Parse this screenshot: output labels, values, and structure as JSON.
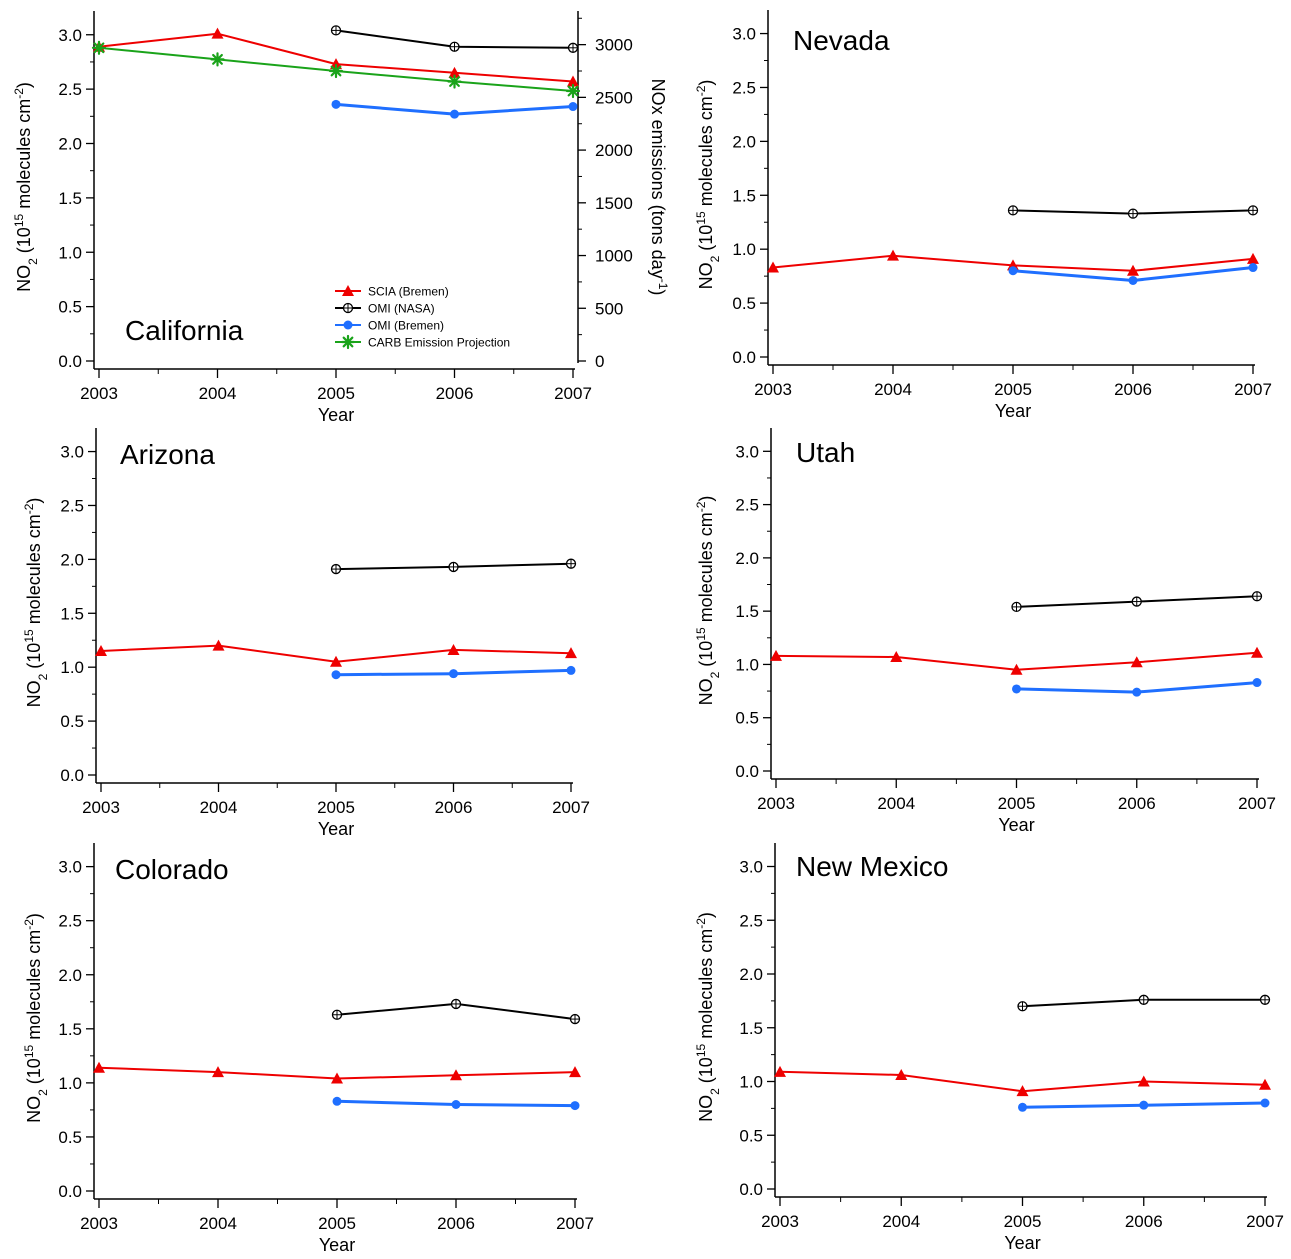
{
  "colors": {
    "scia": "#ee0000",
    "omi_nasa": "#000000",
    "omi_bremen": "#1f6fff",
    "carb": "#1aa31a"
  },
  "legend": {
    "entries": [
      {
        "key": "scia",
        "label": "SCIA (Bremen)",
        "marker": "triangle"
      },
      {
        "key": "omi_nasa",
        "label": "OMI (NASA)",
        "marker": "circle-plus"
      },
      {
        "key": "omi_bremen",
        "label": "OMI (Bremen)",
        "marker": "dot"
      },
      {
        "key": "carb",
        "label": "CARB Emission Projection",
        "marker": "asterisk"
      }
    ]
  },
  "chart_data": [
    {
      "type": "line",
      "title": "California",
      "xlabel": "Year",
      "ylabel_main": "NO",
      "ylabel_sub": "2",
      "ylabel_rest": " (10",
      "ylabel_exp": "15",
      "ylabel_units": " molecules cm",
      "ylabel_units_exp": "-2",
      "ylabel_close": ")",
      "x": [
        2003,
        2004,
        2005,
        2006,
        2007
      ],
      "xticks": [
        "2003",
        "2004",
        "2005",
        "2006",
        "2007"
      ],
      "ylim": [
        0,
        3.2
      ],
      "yticks": [
        "0.0",
        "0.5",
        "1.0",
        "1.5",
        "2.0",
        "2.5",
        "3.0"
      ],
      "y2label": "NOx emissions (tons day",
      "y2label_exp": "-1",
      "y2label_close": ")",
      "y2lim": [
        0,
        3300
      ],
      "y2ticks": [
        "0",
        "500",
        "1000",
        "1500",
        "2000",
        "2500",
        "3000"
      ],
      "show_legend": true,
      "series": [
        {
          "key": "scia",
          "name": "SCIA (Bremen)",
          "x": [
            2003,
            2004,
            2005,
            2006,
            2007
          ],
          "values": [
            2.89,
            3.01,
            2.73,
            2.65,
            2.57
          ]
        },
        {
          "key": "omi_nasa",
          "name": "OMI (NASA)",
          "x": [
            2005,
            2006,
            2007
          ],
          "values": [
            3.04,
            2.89,
            2.88
          ]
        },
        {
          "key": "omi_bremen",
          "name": "OMI (Bremen)",
          "x": [
            2005,
            2006,
            2007
          ],
          "values": [
            2.36,
            2.27,
            2.34
          ]
        },
        {
          "key": "carb",
          "name": "CARB Emission Projection",
          "axis": "right",
          "x": [
            2003,
            2004,
            2005,
            2006,
            2007
          ],
          "values": [
            2970,
            2860,
            2750,
            2650,
            2560
          ]
        }
      ]
    },
    {
      "type": "line",
      "title": "Nevada",
      "xlabel": "Year",
      "ylabel_main": "NO",
      "ylabel_sub": "2",
      "ylabel_rest": " (10",
      "ylabel_exp": "15",
      "ylabel_units": " molecules cm",
      "ylabel_units_exp": "-2",
      "ylabel_close": ")",
      "x": [
        2003,
        2004,
        2005,
        2006,
        2007
      ],
      "xticks": [
        "2003",
        "2004",
        "2005",
        "2006",
        "2007"
      ],
      "ylim": [
        0,
        3.2
      ],
      "yticks": [
        "0.0",
        "0.5",
        "1.0",
        "1.5",
        "2.0",
        "2.5",
        "3.0"
      ],
      "series": [
        {
          "key": "scia",
          "name": "SCIA (Bremen)",
          "x": [
            2003,
            2004,
            2005,
            2006,
            2007
          ],
          "values": [
            0.83,
            0.94,
            0.85,
            0.8,
            0.91
          ]
        },
        {
          "key": "omi_nasa",
          "name": "OMI (NASA)",
          "x": [
            2005,
            2006,
            2007
          ],
          "values": [
            1.36,
            1.33,
            1.36
          ]
        },
        {
          "key": "omi_bremen",
          "name": "OMI (Bremen)",
          "x": [
            2005,
            2006,
            2007
          ],
          "values": [
            0.8,
            0.71,
            0.83
          ]
        }
      ]
    },
    {
      "type": "line",
      "title": "Arizona",
      "xlabel": "Year",
      "ylabel_main": "NO",
      "ylabel_sub": "2",
      "ylabel_rest": " (10",
      "ylabel_exp": "15",
      "ylabel_units": " molecules cm",
      "ylabel_units_exp": "-2",
      "ylabel_close": ")",
      "x": [
        2003,
        2004,
        2005,
        2006,
        2007
      ],
      "xticks": [
        "2003",
        "2004",
        "2005",
        "2006",
        "2007"
      ],
      "ylim": [
        0,
        3.2
      ],
      "yticks": [
        "0.0",
        "0.5",
        "1.0",
        "1.5",
        "2.0",
        "2.5",
        "3.0"
      ],
      "series": [
        {
          "key": "scia",
          "name": "SCIA (Bremen)",
          "x": [
            2003,
            2004,
            2005,
            2006,
            2007
          ],
          "values": [
            1.15,
            1.2,
            1.05,
            1.16,
            1.13
          ]
        },
        {
          "key": "omi_nasa",
          "name": "OMI (NASA)",
          "x": [
            2005,
            2006,
            2007
          ],
          "values": [
            1.91,
            1.93,
            1.96
          ]
        },
        {
          "key": "omi_bremen",
          "name": "OMI (Bremen)",
          "x": [
            2005,
            2006,
            2007
          ],
          "values": [
            0.93,
            0.94,
            0.97
          ]
        }
      ]
    },
    {
      "type": "line",
      "title": "Utah",
      "xlabel": "Year",
      "ylabel_main": "NO",
      "ylabel_sub": "2",
      "ylabel_rest": " (10",
      "ylabel_exp": "15",
      "ylabel_units": " molecules cm",
      "ylabel_units_exp": "-2",
      "ylabel_close": ")",
      "x": [
        2003,
        2004,
        2005,
        2006,
        2007
      ],
      "xticks": [
        "2003",
        "2004",
        "2005",
        "2006",
        "2007"
      ],
      "ylim": [
        0,
        3.2
      ],
      "yticks": [
        "0.0",
        "0.5",
        "1.0",
        "1.5",
        "2.0",
        "2.5",
        "3.0"
      ],
      "series": [
        {
          "key": "scia",
          "name": "SCIA (Bremen)",
          "x": [
            2003,
            2004,
            2005,
            2006,
            2007
          ],
          "values": [
            1.08,
            1.07,
            0.95,
            1.02,
            1.11
          ]
        },
        {
          "key": "omi_nasa",
          "name": "OMI (NASA)",
          "x": [
            2005,
            2006,
            2007
          ],
          "values": [
            1.54,
            1.59,
            1.64
          ]
        },
        {
          "key": "omi_bremen",
          "name": "OMI (Bremen)",
          "x": [
            2005,
            2006,
            2007
          ],
          "values": [
            0.77,
            0.74,
            0.83
          ]
        }
      ]
    },
    {
      "type": "line",
      "title": "Colorado",
      "xlabel": "Year",
      "ylabel_main": "NO",
      "ylabel_sub": "2",
      "ylabel_rest": " (10",
      "ylabel_exp": "15",
      "ylabel_units": " molecules cm",
      "ylabel_units_exp": "-2",
      "ylabel_close": ")",
      "x": [
        2003,
        2004,
        2005,
        2006,
        2007
      ],
      "xticks": [
        "2003",
        "2004",
        "2005",
        "2006",
        "2007"
      ],
      "ylim": [
        0,
        3.2
      ],
      "yticks": [
        "0.0",
        "0.5",
        "1.0",
        "1.5",
        "2.0",
        "2.5",
        "3.0"
      ],
      "series": [
        {
          "key": "scia",
          "name": "SCIA (Bremen)",
          "x": [
            2003,
            2004,
            2005,
            2006,
            2007
          ],
          "values": [
            1.14,
            1.1,
            1.04,
            1.07,
            1.1
          ]
        },
        {
          "key": "omi_nasa",
          "name": "OMI (NASA)",
          "x": [
            2005,
            2006,
            2007
          ],
          "values": [
            1.63,
            1.73,
            1.59
          ]
        },
        {
          "key": "omi_bremen",
          "name": "OMI (Bremen)",
          "x": [
            2005,
            2006,
            2007
          ],
          "values": [
            0.83,
            0.8,
            0.79
          ]
        }
      ]
    },
    {
      "type": "line",
      "title": "New Mexico",
      "xlabel": "Year",
      "ylabel_main": "NO",
      "ylabel_sub": "2",
      "ylabel_rest": " (10",
      "ylabel_exp": "15",
      "ylabel_units": " molecules cm",
      "ylabel_units_exp": "-2",
      "ylabel_close": ")",
      "x": [
        2003,
        2004,
        2005,
        2006,
        2007
      ],
      "xticks": [
        "2003",
        "2004",
        "2005",
        "2006",
        "2007"
      ],
      "ylim": [
        0,
        3.2
      ],
      "yticks": [
        "0.0",
        "0.5",
        "1.0",
        "1.5",
        "2.0",
        "2.5",
        "3.0"
      ],
      "series": [
        {
          "key": "scia",
          "name": "SCIA (Bremen)",
          "x": [
            2003,
            2004,
            2005,
            2006,
            2007
          ],
          "values": [
            1.09,
            1.06,
            0.91,
            1.0,
            0.97
          ]
        },
        {
          "key": "omi_nasa",
          "name": "OMI (NASA)",
          "x": [
            2005,
            2006,
            2007
          ],
          "values": [
            1.7,
            1.76,
            1.76
          ]
        },
        {
          "key": "omi_bremen",
          "name": "OMI (Bremen)",
          "x": [
            2005,
            2006,
            2007
          ],
          "values": [
            0.76,
            0.78,
            0.8
          ]
        }
      ]
    }
  ]
}
